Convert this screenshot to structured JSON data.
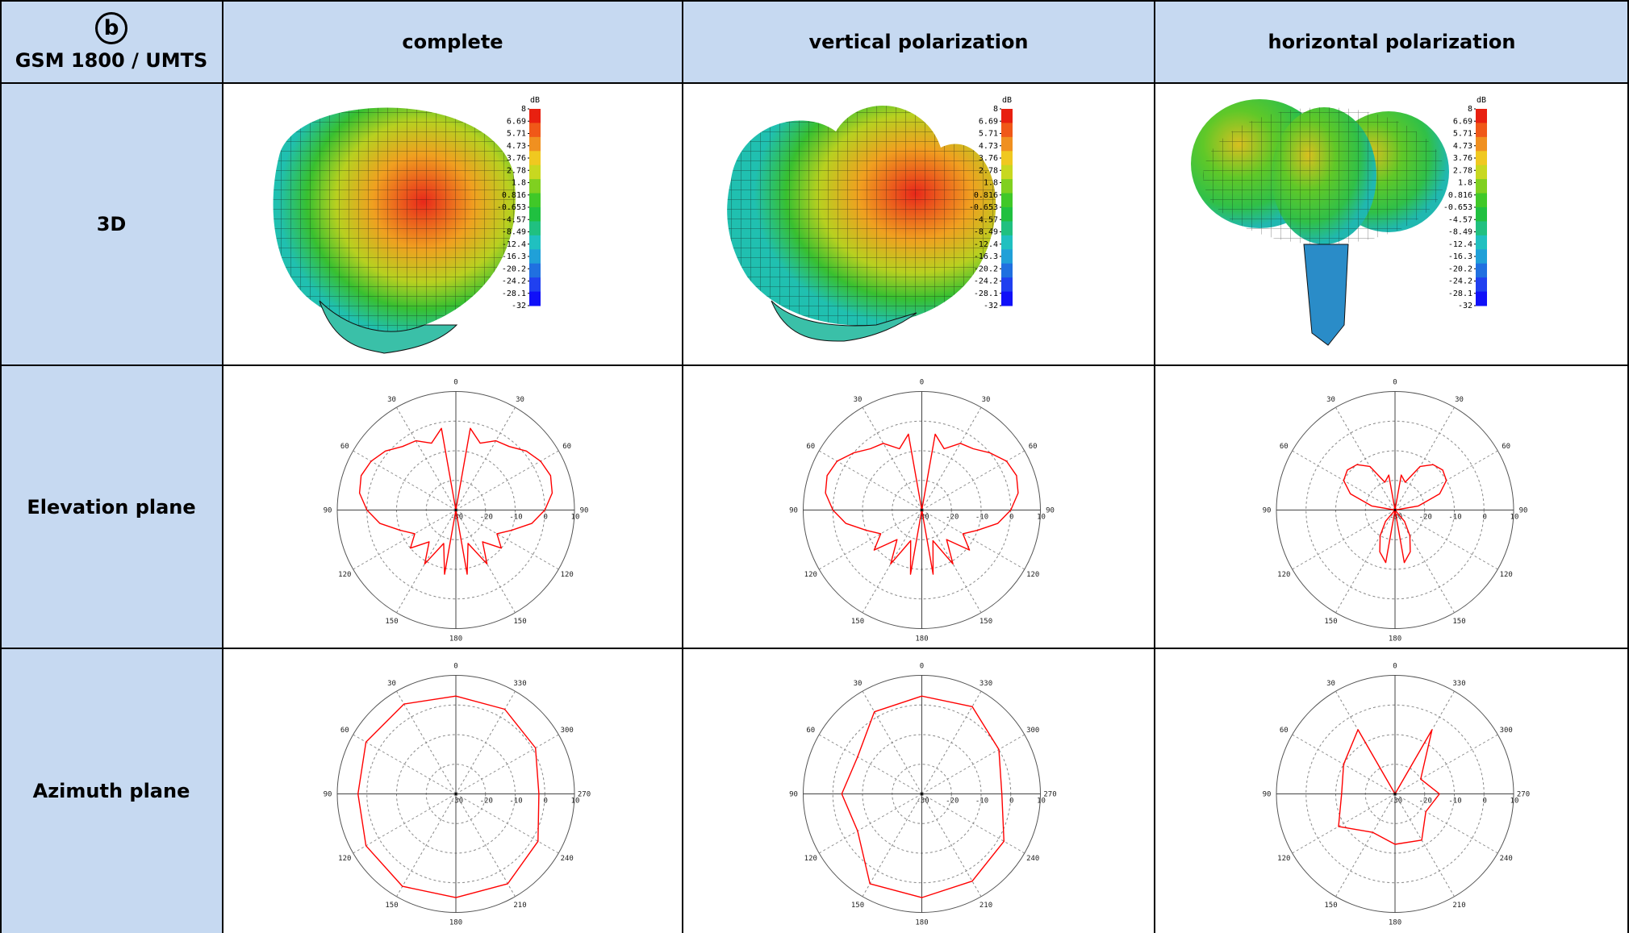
{
  "corner": {
    "badge": "b",
    "label": "GSM 1800 / UMTS"
  },
  "columns": [
    "complete",
    "vertical polarization",
    "horizontal polarization"
  ],
  "rows": [
    "3D",
    "Elevation plane",
    "Azimuth plane"
  ],
  "colorbar": {
    "unit": "dB",
    "ticks": [
      "8",
      "6.69",
      "5.71",
      "4.73",
      "3.76",
      "2.78",
      "1.8",
      "0.816",
      "-0.653",
      "-4.57",
      "-8.49",
      "-12.4",
      "-16.3",
      "-20.2",
      "-24.2",
      "-28.1",
      "-32"
    ]
  },
  "polar": {
    "elevation_angles": [
      "0",
      "30",
      "60",
      "90",
      "120",
      "150",
      "180",
      "150",
      "120",
      "90",
      "60",
      "30"
    ],
    "azimuth_angles": [
      "0",
      "330",
      "300",
      "270",
      "240",
      "210",
      "180",
      "150",
      "120",
      "90",
      "60",
      "30"
    ],
    "radial_labels": [
      "-30",
      "-20",
      "-10",
      "0",
      "10"
    ]
  },
  "colors": {
    "header_bg": "#c6d9f1",
    "trace": "#ff0000"
  },
  "chart_data": [
    {
      "type": "polar",
      "row": "Elevation plane",
      "column": "complete",
      "rlim": [
        -30,
        10
      ],
      "theta": [
        0,
        10,
        20,
        30,
        40,
        50,
        60,
        70,
        80,
        90,
        100,
        110,
        120,
        130,
        140,
        150,
        160,
        170,
        180
      ],
      "r": [
        -30,
        -2,
        -6,
        -3,
        -2,
        1,
        3,
        4,
        3,
        0,
        -4,
        -10,
        -14,
        -10,
        -16,
        -9,
        -18,
        -8,
        -30
      ]
    },
    {
      "type": "polar",
      "row": "Elevation plane",
      "column": "vertical polarization",
      "rlim": [
        -30,
        10
      ],
      "theta": [
        0,
        10,
        20,
        30,
        40,
        50,
        60,
        70,
        80,
        90,
        100,
        110,
        120,
        130,
        140,
        150,
        160,
        170,
        180
      ],
      "r": [
        -30,
        -4,
        -8,
        -4,
        -3,
        0,
        3,
        4,
        3,
        0,
        -4,
        -10,
        -14,
        -9,
        -17,
        -9,
        -19,
        -8,
        -30
      ]
    },
    {
      "type": "polar",
      "row": "Elevation plane",
      "column": "horizontal polarization",
      "rlim": [
        -30,
        10
      ],
      "theta": [
        0,
        10,
        20,
        30,
        40,
        50,
        60,
        70,
        80,
        90,
        100,
        110,
        120,
        130,
        140,
        150,
        160,
        170,
        180
      ],
      "r": [
        -30,
        -18,
        -20,
        -13,
        -10,
        -9,
        -10,
        -14,
        -22,
        -30,
        -30,
        -30,
        -30,
        -30,
        -25,
        -20,
        -15,
        -12,
        -30
      ]
    },
    {
      "type": "polar",
      "row": "Azimuth plane",
      "column": "complete",
      "rlim": [
        -30,
        10
      ],
      "theta": [
        0,
        30,
        60,
        90,
        120,
        150,
        180,
        210,
        240,
        270,
        300,
        330,
        360
      ],
      "r": [
        3,
        5,
        5,
        3,
        5,
        6,
        5,
        5,
        2,
        -2,
        1,
        3,
        3
      ]
    },
    {
      "type": "polar",
      "row": "Azimuth plane",
      "column": "vertical polarization",
      "rlim": [
        -30,
        10
      ],
      "theta": [
        0,
        30,
        60,
        90,
        120,
        150,
        180,
        210,
        240,
        270,
        300,
        330,
        360
      ],
      "r": [
        3,
        2,
        -5,
        -3,
        -5,
        5,
        5,
        4,
        2,
        -3,
        0,
        4,
        3
      ]
    },
    {
      "type": "polar",
      "row": "Azimuth plane",
      "column": "horizontal polarization",
      "rlim": [
        -30,
        10
      ],
      "theta": [
        0,
        30,
        60,
        90,
        120,
        150,
        180,
        210,
        240,
        270,
        300,
        330,
        360
      ],
      "r": [
        -30,
        -5,
        -10,
        -12,
        -8,
        -15,
        -13,
        -12,
        -18,
        -15,
        -20,
        -5,
        -30
      ]
    }
  ]
}
